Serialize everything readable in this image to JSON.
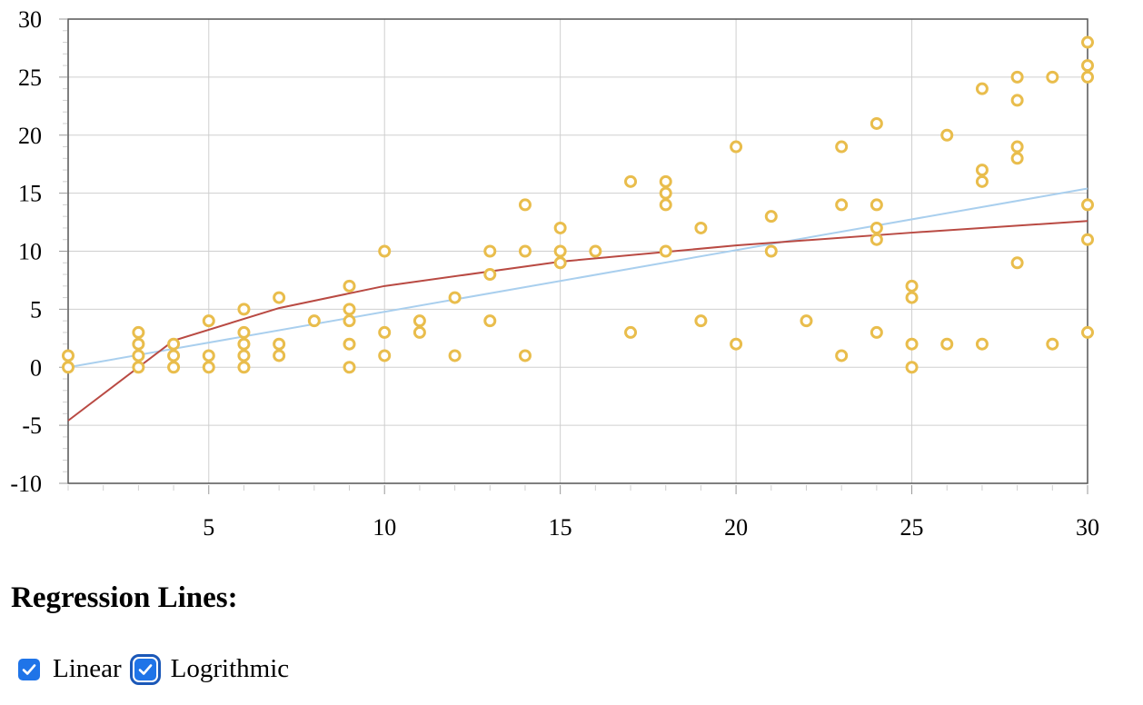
{
  "chart_data": {
    "type": "scatter",
    "xlim": [
      1,
      30
    ],
    "ylim": [
      -10,
      30
    ],
    "x_ticks": [
      5,
      10,
      15,
      20,
      25,
      30
    ],
    "y_ticks": [
      30,
      25,
      20,
      15,
      10,
      5,
      0,
      -5,
      -10
    ],
    "grid": true,
    "point_color": "#e9bd4c",
    "linear_color": "#a9cfee",
    "log_color": "#b94a43",
    "points": [
      [
        1,
        1
      ],
      [
        1,
        0
      ],
      [
        3,
        3
      ],
      [
        3,
        2
      ],
      [
        3,
        1
      ],
      [
        3,
        0
      ],
      [
        4,
        2
      ],
      [
        4,
        1
      ],
      [
        4,
        0
      ],
      [
        5,
        4
      ],
      [
        5,
        1
      ],
      [
        5,
        0
      ],
      [
        6,
        5
      ],
      [
        6,
        3
      ],
      [
        6,
        2
      ],
      [
        6,
        1
      ],
      [
        6,
        0
      ],
      [
        7,
        6
      ],
      [
        7,
        2
      ],
      [
        7,
        1
      ],
      [
        8,
        4
      ],
      [
        9,
        7
      ],
      [
        9,
        5
      ],
      [
        9,
        4
      ],
      [
        9,
        2
      ],
      [
        9,
        0
      ],
      [
        10,
        10
      ],
      [
        10,
        3
      ],
      [
        10,
        1
      ],
      [
        11,
        4
      ],
      [
        11,
        3
      ],
      [
        12,
        6
      ],
      [
        12,
        1
      ],
      [
        13,
        10
      ],
      [
        13,
        8
      ],
      [
        13,
        4
      ],
      [
        14,
        14
      ],
      [
        14,
        10
      ],
      [
        14,
        1
      ],
      [
        15,
        12
      ],
      [
        15,
        10
      ],
      [
        15,
        9
      ],
      [
        16,
        10
      ],
      [
        17,
        16
      ],
      [
        17,
        3
      ],
      [
        18,
        16
      ],
      [
        18,
        15
      ],
      [
        18,
        14
      ],
      [
        18,
        10
      ],
      [
        19,
        12
      ],
      [
        19,
        4
      ],
      [
        20,
        19
      ],
      [
        20,
        2
      ],
      [
        21,
        13
      ],
      [
        21,
        10
      ],
      [
        22,
        4
      ],
      [
        23,
        19
      ],
      [
        23,
        14
      ],
      [
        23,
        1
      ],
      [
        24,
        21
      ],
      [
        24,
        14
      ],
      [
        24,
        12
      ],
      [
        24,
        11
      ],
      [
        24,
        3
      ],
      [
        25,
        7
      ],
      [
        25,
        6
      ],
      [
        25,
        2
      ],
      [
        25,
        0
      ],
      [
        26,
        20
      ],
      [
        26,
        2
      ],
      [
        27,
        24
      ],
      [
        27,
        17
      ],
      [
        27,
        16
      ],
      [
        27,
        2
      ],
      [
        28,
        25
      ],
      [
        28,
        23
      ],
      [
        28,
        19
      ],
      [
        28,
        18
      ],
      [
        28,
        9
      ],
      [
        29,
        25
      ],
      [
        29,
        2
      ],
      [
        30,
        28
      ],
      [
        30,
        26
      ],
      [
        30,
        25
      ],
      [
        30,
        14
      ],
      [
        30,
        11
      ],
      [
        30,
        3
      ]
    ],
    "linear_line": [
      [
        1,
        0
      ],
      [
        30,
        15.4
      ]
    ],
    "log_line": [
      [
        1,
        -4.6
      ],
      [
        4,
        2.3
      ],
      [
        7,
        5.1
      ],
      [
        10,
        7
      ],
      [
        15,
        9.1
      ],
      [
        20,
        10.5
      ],
      [
        25,
        11.6
      ],
      [
        30,
        12.6
      ]
    ]
  },
  "controls": {
    "title": "Regression Lines:",
    "linear": {
      "label": "Linear",
      "checked": true
    },
    "log": {
      "label": "Logrithmic",
      "checked": true
    }
  }
}
